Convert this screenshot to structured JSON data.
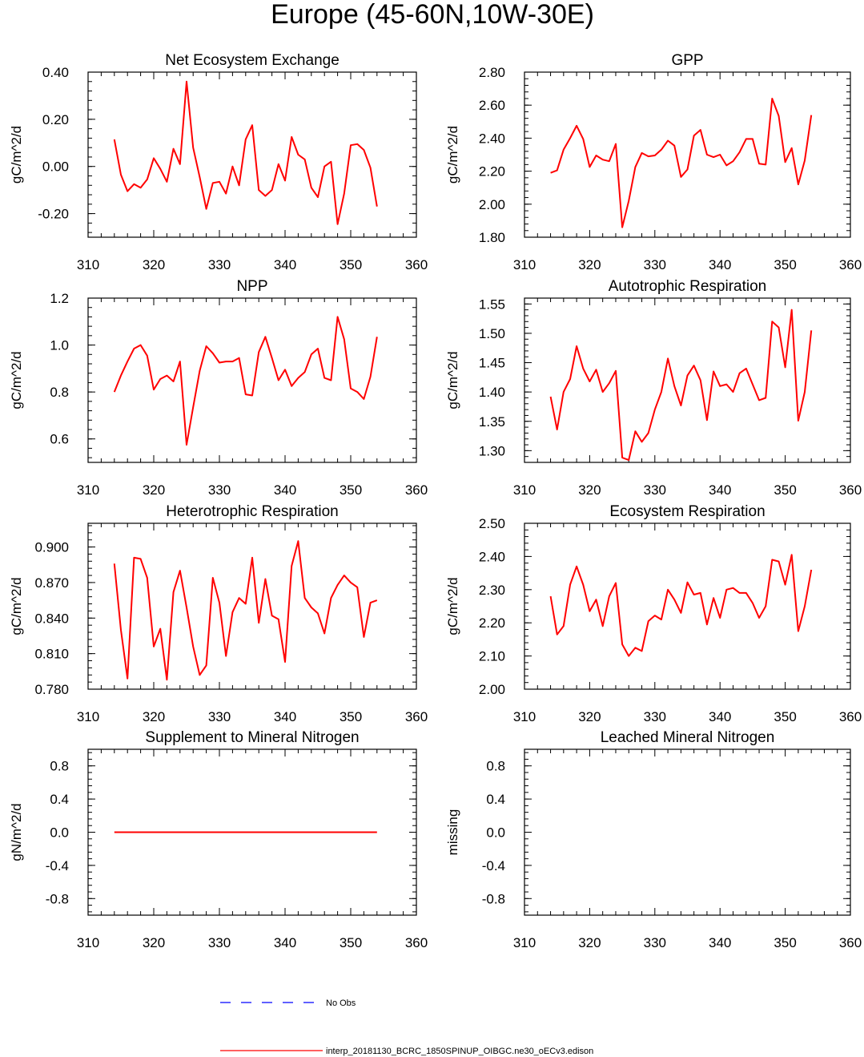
{
  "title": "Europe (45-60N,10W-30E)",
  "chart_data": [
    {
      "type": "line",
      "title": "Net Ecosystem Exchange",
      "ylabel": "gC/m^2/d",
      "xlim": [
        310,
        360
      ],
      "xticks": [
        310,
        320,
        330,
        340,
        350,
        360
      ],
      "ylim": [
        -0.3,
        0.4
      ],
      "yticks": [
        -0.2,
        0.0,
        0.2,
        0.4
      ],
      "ytick_labels": [
        "-0.20",
        "0.00",
        "0.20",
        "0.40"
      ],
      "yminor": 0.04,
      "x": [
        314,
        315,
        316,
        317,
        318,
        319,
        320,
        321,
        322,
        323,
        324,
        325,
        326,
        327,
        328,
        329,
        330,
        331,
        332,
        333,
        334,
        335,
        336,
        337,
        338,
        339,
        340,
        341,
        342,
        343,
        344,
        345,
        346,
        347,
        348,
        349,
        350,
        351,
        352,
        353,
        354
      ],
      "values": [
        0.115,
        -0.035,
        -0.105,
        -0.075,
        -0.09,
        -0.055,
        0.035,
        -0.01,
        -0.065,
        0.075,
        0.01,
        0.36,
        0.08,
        -0.045,
        -0.18,
        -0.07,
        -0.065,
        -0.115,
        0.0,
        -0.08,
        0.115,
        0.175,
        -0.1,
        -0.125,
        -0.1,
        0.01,
        -0.06,
        0.125,
        0.05,
        0.03,
        -0.09,
        -0.13,
        0.0,
        0.02,
        -0.245,
        -0.115,
        0.09,
        0.095,
        0.07,
        -0.005,
        -0.17
      ]
    },
    {
      "type": "line",
      "title": "GPP",
      "ylabel": "gC/m^2/d",
      "xlim": [
        310,
        360
      ],
      "xticks": [
        310,
        320,
        330,
        340,
        350,
        360
      ],
      "ylim": [
        1.8,
        2.8
      ],
      "yticks": [
        1.8,
        2.0,
        2.2,
        2.4,
        2.6,
        2.8
      ],
      "ytick_labels": [
        "1.80",
        "2.00",
        "2.20",
        "2.40",
        "2.60",
        "2.80"
      ],
      "yminor": 0.04,
      "x": [
        314,
        315,
        316,
        317,
        318,
        319,
        320,
        321,
        322,
        323,
        324,
        325,
        326,
        327,
        328,
        329,
        330,
        331,
        332,
        333,
        334,
        335,
        336,
        337,
        338,
        339,
        340,
        341,
        342,
        343,
        344,
        345,
        346,
        347,
        348,
        349,
        350,
        351,
        352,
        353,
        354
      ],
      "values": [
        2.19,
        2.205,
        2.33,
        2.4,
        2.475,
        2.395,
        2.225,
        2.295,
        2.27,
        2.26,
        2.365,
        1.86,
        2.02,
        2.225,
        2.31,
        2.29,
        2.295,
        2.33,
        2.385,
        2.355,
        2.165,
        2.21,
        2.415,
        2.45,
        2.3,
        2.285,
        2.3,
        2.235,
        2.26,
        2.315,
        2.395,
        2.395,
        2.245,
        2.24,
        2.64,
        2.535,
        2.255,
        2.34,
        2.12,
        2.265,
        2.54
      ]
    },
    {
      "type": "line",
      "title": "NPP",
      "ylabel": "gC/m^2/d",
      "xlim": [
        310,
        360
      ],
      "xticks": [
        310,
        320,
        330,
        340,
        350,
        360
      ],
      "ylim": [
        0.5,
        1.2
      ],
      "yticks": [
        0.6,
        0.8,
        1.0,
        1.2
      ],
      "ytick_labels": [
        "0.6",
        "0.8",
        "1.0",
        "1.2"
      ],
      "yminor": 0.04,
      "x": [
        314,
        315,
        316,
        317,
        318,
        319,
        320,
        321,
        322,
        323,
        324,
        325,
        326,
        327,
        328,
        329,
        330,
        331,
        332,
        333,
        334,
        335,
        336,
        337,
        338,
        339,
        340,
        341,
        342,
        343,
        344,
        345,
        346,
        347,
        348,
        349,
        350,
        351,
        352,
        353,
        354
      ],
      "values": [
        0.8,
        0.87,
        0.93,
        0.985,
        1.0,
        0.955,
        0.81,
        0.855,
        0.87,
        0.845,
        0.93,
        0.575,
        0.735,
        0.89,
        0.995,
        0.965,
        0.925,
        0.93,
        0.93,
        0.945,
        0.79,
        0.785,
        0.97,
        1.035,
        0.945,
        0.85,
        0.895,
        0.825,
        0.86,
        0.885,
        0.96,
        0.985,
        0.86,
        0.85,
        1.12,
        1.025,
        0.815,
        0.8,
        0.77,
        0.865,
        1.035
      ]
    },
    {
      "type": "line",
      "title": "Autotrophic Respiration",
      "ylabel": "gC/m^2/d",
      "xlim": [
        310,
        360
      ],
      "xticks": [
        310,
        320,
        330,
        340,
        350,
        360
      ],
      "ylim": [
        1.28,
        1.56
      ],
      "yticks": [
        1.3,
        1.35,
        1.4,
        1.45,
        1.5,
        1.55
      ],
      "ytick_labels": [
        "1.30",
        "1.35",
        "1.40",
        "1.45",
        "1.50",
        "1.55"
      ],
      "yminor": 0.01,
      "x": [
        314,
        315,
        316,
        317,
        318,
        319,
        320,
        321,
        322,
        323,
        324,
        325,
        326,
        327,
        328,
        329,
        330,
        331,
        332,
        333,
        334,
        335,
        336,
        337,
        338,
        339,
        340,
        341,
        342,
        343,
        344,
        345,
        346,
        347,
        348,
        349,
        350,
        351,
        352,
        353,
        354
      ],
      "values": [
        1.392,
        1.336,
        1.4,
        1.422,
        1.478,
        1.44,
        1.418,
        1.438,
        1.4,
        1.415,
        1.436,
        1.288,
        1.284,
        1.333,
        1.315,
        1.33,
        1.37,
        1.4,
        1.457,
        1.41,
        1.377,
        1.428,
        1.445,
        1.42,
        1.352,
        1.435,
        1.41,
        1.413,
        1.4,
        1.432,
        1.44,
        1.413,
        1.386,
        1.39,
        1.52,
        1.51,
        1.442,
        1.54,
        1.351,
        1.4,
        1.505
      ]
    },
    {
      "type": "line",
      "title": "Heterotrophic Respiration",
      "ylabel": "gC/m^2/d",
      "xlim": [
        310,
        360
      ],
      "xticks": [
        310,
        320,
        330,
        340,
        350,
        360
      ],
      "ylim": [
        0.78,
        0.92
      ],
      "yticks": [
        0.78,
        0.81,
        0.84,
        0.87,
        0.9
      ],
      "ytick_labels": [
        "0.780",
        "0.810",
        "0.840",
        "0.870",
        "0.900"
      ],
      "yminor": 0.006,
      "x": [
        314,
        315,
        316,
        317,
        318,
        319,
        320,
        321,
        322,
        323,
        324,
        325,
        326,
        327,
        328,
        329,
        330,
        331,
        332,
        333,
        334,
        335,
        336,
        337,
        338,
        339,
        340,
        341,
        342,
        343,
        344,
        345,
        346,
        347,
        348,
        349,
        350,
        351,
        352,
        353,
        354
      ],
      "values": [
        0.886,
        0.83,
        0.789,
        0.891,
        0.89,
        0.874,
        0.816,
        0.831,
        0.788,
        0.862,
        0.88,
        0.849,
        0.816,
        0.792,
        0.8,
        0.874,
        0.853,
        0.808,
        0.845,
        0.857,
        0.852,
        0.891,
        0.836,
        0.873,
        0.842,
        0.839,
        0.803,
        0.884,
        0.905,
        0.857,
        0.849,
        0.844,
        0.827,
        0.857,
        0.868,
        0.876,
        0.87,
        0.866,
        0.824,
        0.853,
        0.855
      ]
    },
    {
      "type": "line",
      "title": "Ecosystem Respiration",
      "ylabel": "gC/m^2/d",
      "xlim": [
        310,
        360
      ],
      "xticks": [
        310,
        320,
        330,
        340,
        350,
        360
      ],
      "ylim": [
        2.0,
        2.5
      ],
      "yticks": [
        2.0,
        2.1,
        2.2,
        2.3,
        2.4,
        2.5
      ],
      "ytick_labels": [
        "2.00",
        "2.10",
        "2.20",
        "2.30",
        "2.40",
        "2.50"
      ],
      "yminor": 0.02,
      "x": [
        314,
        315,
        316,
        317,
        318,
        319,
        320,
        321,
        322,
        323,
        324,
        325,
        326,
        327,
        328,
        329,
        330,
        331,
        332,
        333,
        334,
        335,
        336,
        337,
        338,
        339,
        340,
        341,
        342,
        343,
        344,
        345,
        346,
        347,
        348,
        349,
        350,
        351,
        352,
        353,
        354
      ],
      "values": [
        2.28,
        2.165,
        2.19,
        2.315,
        2.37,
        2.315,
        2.235,
        2.27,
        2.19,
        2.28,
        2.32,
        2.135,
        2.1,
        2.125,
        2.115,
        2.205,
        2.222,
        2.21,
        2.3,
        2.27,
        2.23,
        2.322,
        2.285,
        2.29,
        2.195,
        2.275,
        2.215,
        2.3,
        2.305,
        2.29,
        2.29,
        2.26,
        2.215,
        2.25,
        2.39,
        2.385,
        2.315,
        2.405,
        2.175,
        2.25,
        2.36
      ]
    },
    {
      "type": "line",
      "title": "Supplement to Mineral Nitrogen",
      "ylabel": "gN/m^2/d",
      "xlim": [
        310,
        360
      ],
      "xticks": [
        310,
        320,
        330,
        340,
        350,
        360
      ],
      "ylim": [
        -1.0,
        1.0
      ],
      "yticks": [
        -0.8,
        -0.4,
        0.0,
        0.4,
        0.8
      ],
      "ytick_labels": [
        "-0.8",
        "-0.4",
        "0.0",
        "0.4",
        "0.8"
      ],
      "yminor": 0.08,
      "x": [
        314,
        354
      ],
      "values": [
        0.0,
        0.0
      ]
    },
    {
      "type": "line",
      "title": "Leached Mineral Nitrogen",
      "ylabel": "missing",
      "xlim": [
        310,
        360
      ],
      "xticks": [
        310,
        320,
        330,
        340,
        350,
        360
      ],
      "ylim": [
        -1.0,
        1.0
      ],
      "yticks": [
        -0.8,
        -0.4,
        0.0,
        0.4,
        0.8
      ],
      "ytick_labels": [
        "-0.8",
        "-0.4",
        "0.0",
        "0.4",
        "0.8"
      ],
      "yminor": 0.08,
      "x": [],
      "values": []
    }
  ],
  "legend": [
    {
      "label": "No Obs",
      "color": "#0000ff",
      "style": "dashed"
    },
    {
      "label": "interp_20181130_BCRC_1850SPINUP_OIBGC.ne30_oECv3.edison",
      "color": "#ff0000",
      "style": "solid"
    }
  ],
  "series_color": "#ff0000"
}
